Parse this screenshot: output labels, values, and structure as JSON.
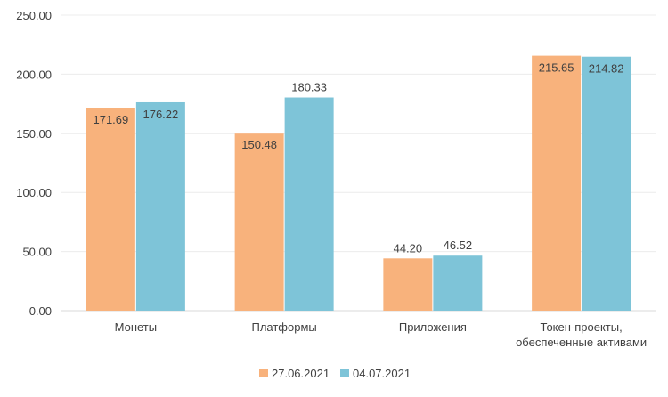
{
  "chart_data": {
    "type": "bar",
    "title": "",
    "xlabel": "",
    "ylabel": "",
    "categories": [
      [
        "Монеты"
      ],
      [
        "Платформы"
      ],
      [
        "Приложения"
      ],
      [
        "Токен-проекты,",
        "обеспеченные активами"
      ]
    ],
    "series": [
      {
        "name": "27.06.2021",
        "color": "#F8B27C",
        "values": [
          171.69,
          150.48,
          44.2,
          215.65
        ]
      },
      {
        "name": "04.07.2021",
        "color": "#7EC4D8",
        "values": [
          176.22,
          180.33,
          46.52,
          214.82
        ]
      }
    ],
    "ylim": [
      0,
      250
    ],
    "yticks": [
      0,
      50,
      100,
      150,
      200,
      250
    ],
    "ytick_format": "2 decimals",
    "grid": true,
    "legend": "bottom-center",
    "data_labels": true
  }
}
